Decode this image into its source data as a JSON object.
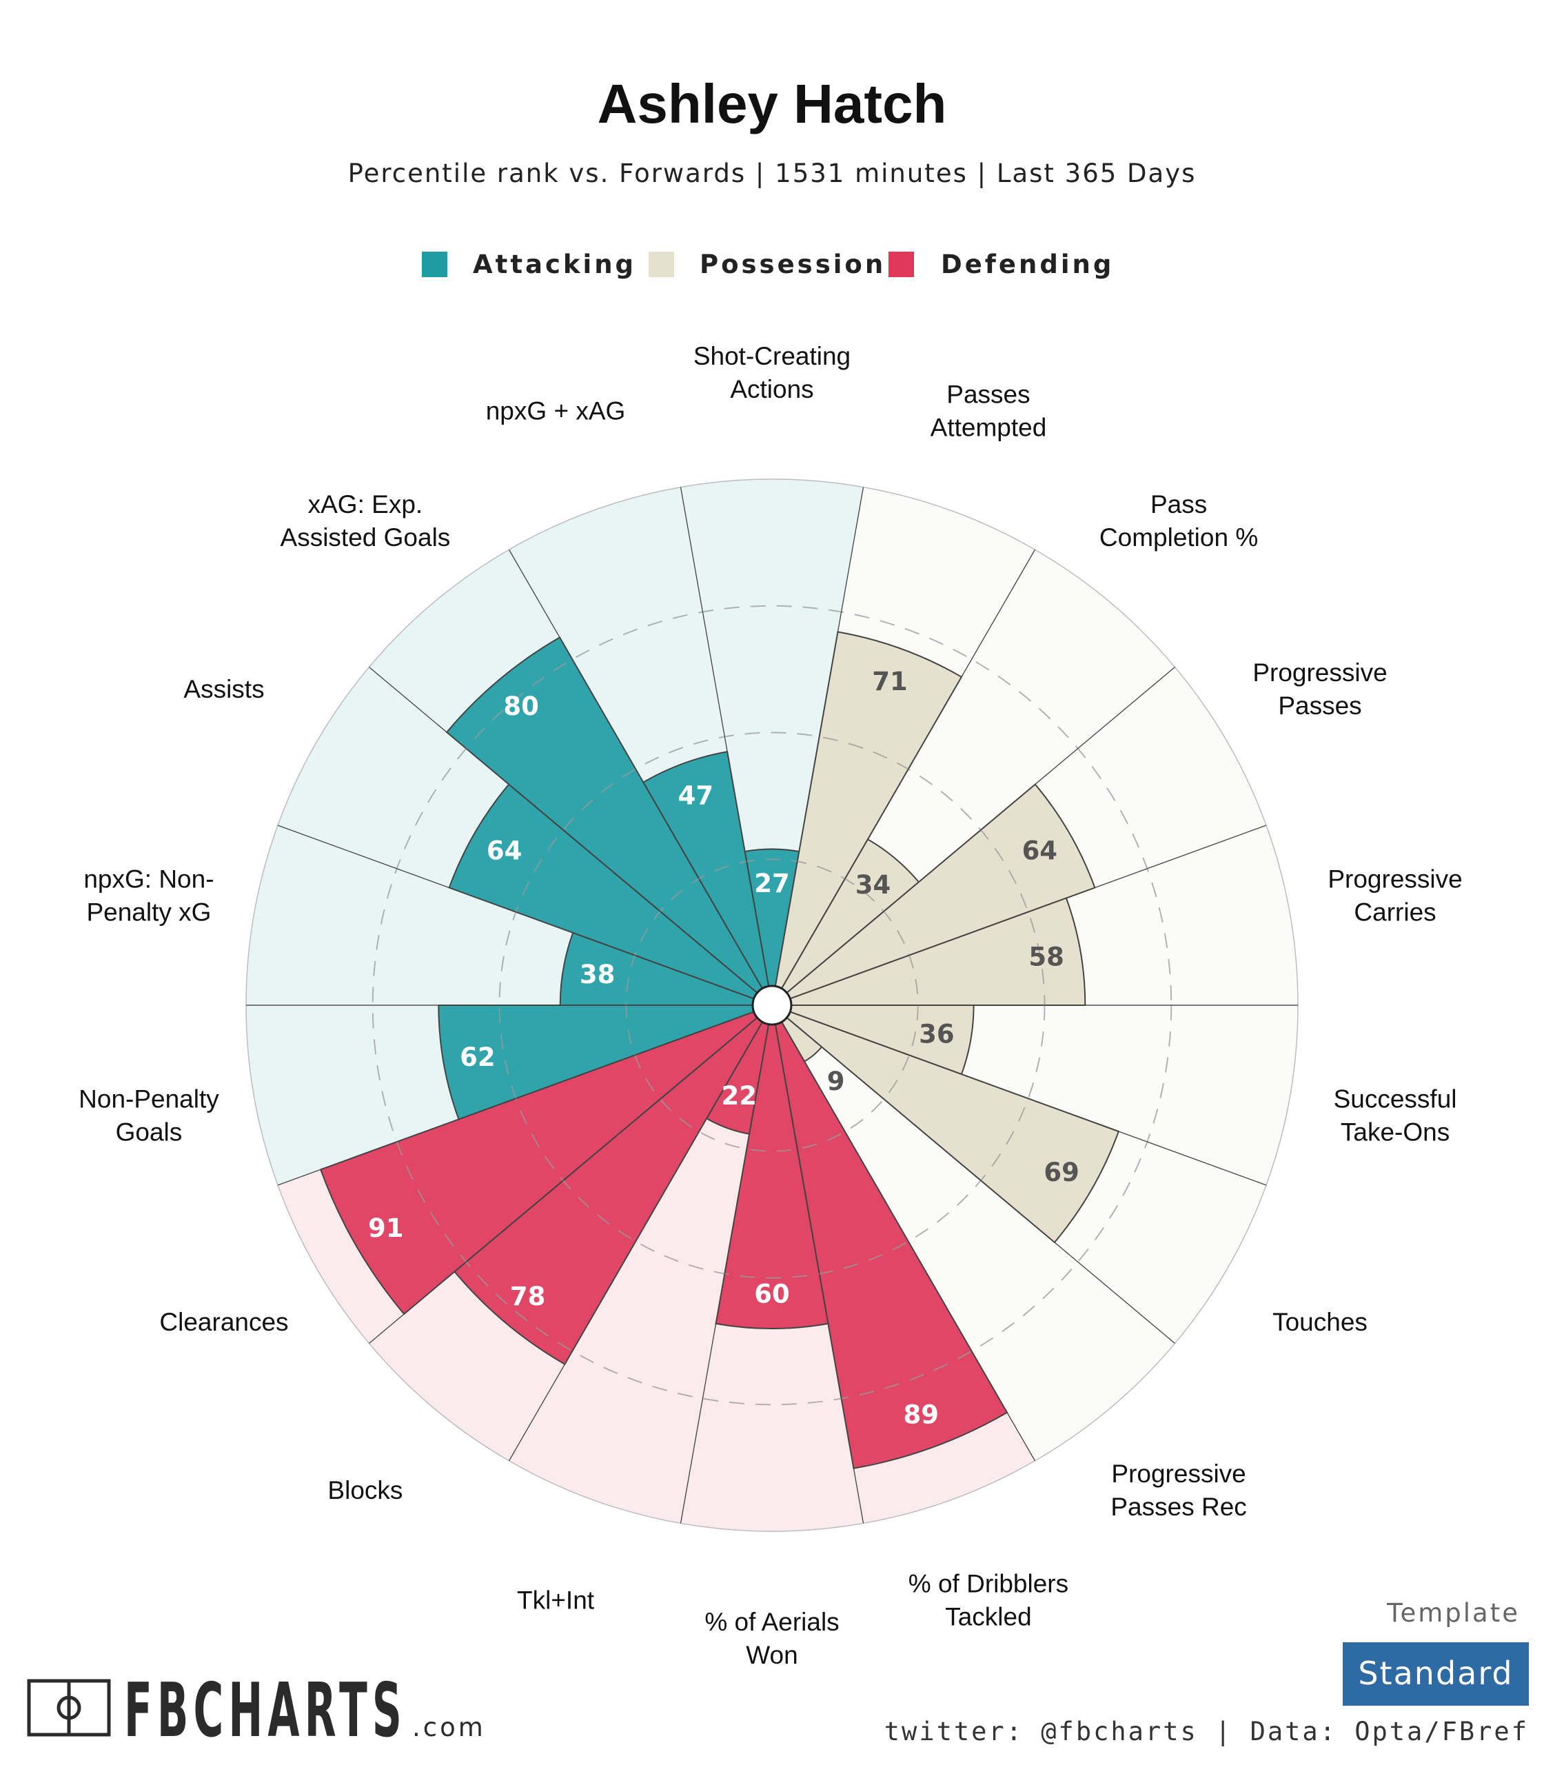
{
  "header": {
    "title": "Ashley Hatch",
    "subtitle": "Percentile rank vs. Forwards | 1531 minutes | Last 365 Days"
  },
  "legend": [
    {
      "label": "Attacking",
      "color": "#1e9ca3"
    },
    {
      "label": "Possession",
      "color": "#e6e1cf"
    },
    {
      "label": "Defending",
      "color": "#e0375a"
    }
  ],
  "chart_data": {
    "type": "polar-bar",
    "title": "Ashley Hatch",
    "subtitle": "Percentile rank vs. Forwards | 1531 minutes | Last 365 Days",
    "rlim": [
      0,
      100
    ],
    "categories": [
      "Shot-Creating Actions",
      "Passes Attempted",
      "Pass Completion %",
      "Progressive Passes",
      "Progressive Carries",
      "Successful Take-Ons",
      "Touches",
      "Progressive Passes Rec",
      "% of Dribblers Tackled",
      "% of Aerials Won",
      "Tkl+Int",
      "Blocks",
      "Clearances",
      "Non-Penalty Goals",
      "npxG: Non-Penalty xG",
      "Assists",
      "xAG: Exp. Assisted Goals",
      "npxG + xAG"
    ],
    "label_lines": [
      [
        "Shot-Creating",
        "Actions"
      ],
      [
        "Passes",
        "Attempted"
      ],
      [
        "Pass",
        "Completion %"
      ],
      [
        "Progressive",
        "Passes"
      ],
      [
        "Progressive",
        "Carries"
      ],
      [
        "Successful",
        "Take-Ons"
      ],
      [
        "Touches"
      ],
      [
        "Progressive",
        "Passes Rec"
      ],
      [
        "% of Dribblers",
        "Tackled"
      ],
      [
        "% of Aerials",
        "Won"
      ],
      [
        "Tkl+Int"
      ],
      [
        "Blocks"
      ],
      [
        "Clearances"
      ],
      [
        "Non-Penalty",
        "Goals"
      ],
      [
        "npxG: Non-",
        "Penalty xG"
      ],
      [
        "Assists"
      ],
      [
        "xAG: Exp.",
        "Assisted Goals"
      ],
      [
        "npxG + xAG"
      ]
    ],
    "values": [
      27,
      71,
      34,
      64,
      58,
      36,
      69,
      9,
      89,
      60,
      22,
      78,
      91,
      62,
      38,
      64,
      80,
      47
    ],
    "groups": [
      "Attacking",
      "Possession",
      "Possession",
      "Possession",
      "Possession",
      "Possession",
      "Possession",
      "Possession",
      "Defending",
      "Defending",
      "Defending",
      "Defending",
      "Defending",
      "Attacking",
      "Attacking",
      "Attacking",
      "Attacking",
      "Attacking"
    ],
    "colors": {
      "Attacking": "#1e9ca3",
      "Possession": "#e6e1cf",
      "Defending": "#e0375a"
    },
    "background_colors": {
      "Attacking": "#e8f5f5",
      "Possession": "#fbfbfa",
      "Defending": "#fcebee"
    },
    "value_label_colors": {
      "Attacking": "#ffffff",
      "Possession": "#555555",
      "Defending": "#ffffff"
    },
    "grid": "dashed rings at 25, 50, 75"
  },
  "template": {
    "label": "Template",
    "button": "Standard",
    "button_color": "#2e6aa3"
  },
  "footer": {
    "credit": "twitter: @fbcharts | Data: Opta/FBref",
    "brand": "FBCHARTS",
    "brand_suffix": ".com"
  }
}
